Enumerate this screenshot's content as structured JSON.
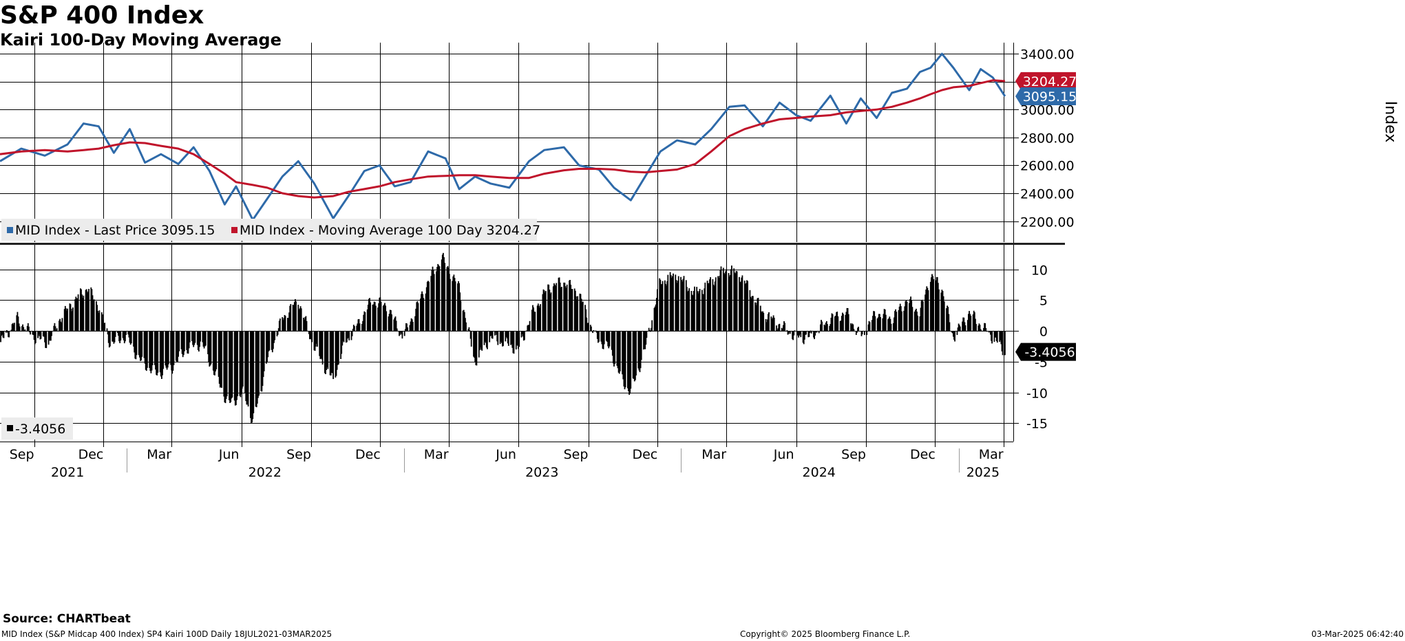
{
  "title": "S&P 400 Index",
  "subtitle": "Kairi 100-Day Moving Average",
  "source": "Source: CHARTbeat",
  "footer": {
    "left": "MID Index (S&P Midcap 400 Index) SP4 Kairi 100D  Daily 18JUL2021-03MAR2025",
    "center": "Copyright© 2025 Bloomberg Finance L.P.",
    "right": "03-Mar-2025 06:42:40"
  },
  "colors": {
    "price": "#2e6aa9",
    "moving_average": "#c0142b",
    "kairi": "#000000",
    "grid": "#000000"
  },
  "chart_data": [
    {
      "type": "line",
      "panel": "upper",
      "ylabel": "Index",
      "ylim": [
        2050,
        3480
      ],
      "yticks": [
        2200,
        2400,
        2600,
        2800,
        3000,
        3200,
        3400
      ],
      "ytick_labels": [
        "2200.00",
        "2400.00",
        "2600.00",
        "2800.00",
        "3000.00",
        "3200.00",
        "3400.00"
      ],
      "grid": true,
      "legend_position": "bottom-left",
      "x": [
        "2021-07-18",
        "2021-08-15",
        "2021-09-15",
        "2021-10-15",
        "2021-11-05",
        "2021-11-25",
        "2021-12-15",
        "2022-01-05",
        "2022-01-25",
        "2022-02-15",
        "2022-03-10",
        "2022-03-30",
        "2022-04-20",
        "2022-05-10",
        "2022-05-25",
        "2022-06-16",
        "2022-07-05",
        "2022-07-25",
        "2022-08-15",
        "2022-09-05",
        "2022-09-30",
        "2022-10-20",
        "2022-11-10",
        "2022-11-30",
        "2022-12-20",
        "2023-01-10",
        "2023-02-02",
        "2023-02-25",
        "2023-03-15",
        "2023-04-05",
        "2023-04-25",
        "2023-05-20",
        "2023-06-15",
        "2023-07-05",
        "2023-07-31",
        "2023-08-20",
        "2023-09-15",
        "2023-10-05",
        "2023-10-27",
        "2023-11-15",
        "2023-12-05",
        "2023-12-27",
        "2024-01-20",
        "2024-02-10",
        "2024-03-05",
        "2024-03-25",
        "2024-04-18",
        "2024-05-10",
        "2024-06-01",
        "2024-06-20",
        "2024-07-16",
        "2024-08-06",
        "2024-08-25",
        "2024-09-15",
        "2024-10-05",
        "2024-10-25",
        "2024-11-11",
        "2024-11-25",
        "2024-12-10",
        "2024-12-25",
        "2025-01-15",
        "2025-01-30",
        "2025-02-15",
        "2025-03-03"
      ],
      "series": [
        {
          "name": "MID Index - Last Price",
          "legend": "MID Index - Last Price 3095.15",
          "last_value": 3095.15,
          "last_label": "3095.15",
          "values": [
            2630,
            2720,
            2670,
            2750,
            2900,
            2880,
            2690,
            2860,
            2620,
            2680,
            2610,
            2730,
            2560,
            2320,
            2450,
            2210,
            2360,
            2520,
            2630,
            2470,
            2220,
            2380,
            2560,
            2600,
            2450,
            2480,
            2700,
            2650,
            2430,
            2520,
            2470,
            2440,
            2630,
            2710,
            2730,
            2600,
            2570,
            2440,
            2350,
            2520,
            2700,
            2780,
            2750,
            2860,
            3020,
            3030,
            2880,
            3050,
            2960,
            2920,
            3100,
            2900,
            3080,
            2940,
            3120,
            3150,
            3270,
            3300,
            3400,
            3300,
            3140,
            3290,
            3230,
            3095.15
          ]
        },
        {
          "name": "MID Index - Moving Average 100 Day",
          "legend": "MID Index - Moving Average 100 Day 3204.27",
          "last_value": 3204.27,
          "last_label": "3204.27",
          "values": [
            2680,
            2700,
            2710,
            2700,
            2710,
            2720,
            2745,
            2765,
            2760,
            2740,
            2720,
            2680,
            2610,
            2540,
            2480,
            2460,
            2440,
            2400,
            2380,
            2370,
            2380,
            2410,
            2430,
            2450,
            2480,
            2500,
            2520,
            2525,
            2530,
            2530,
            2520,
            2510,
            2510,
            2540,
            2565,
            2575,
            2575,
            2570,
            2555,
            2550,
            2560,
            2570,
            2610,
            2700,
            2810,
            2860,
            2900,
            2930,
            2940,
            2950,
            2960,
            2980,
            2990,
            3000,
            3020,
            3050,
            3080,
            3110,
            3140,
            3160,
            3170,
            3190,
            3210,
            3204.27
          ]
        }
      ]
    },
    {
      "type": "bar",
      "panel": "lower",
      "ylim": [
        -18,
        14
      ],
      "yticks": [
        -15,
        -10,
        -5,
        0,
        5,
        10
      ],
      "ytick_labels": [
        "-15",
        "-10",
        "-5",
        "0",
        "5",
        "10"
      ],
      "grid": true,
      "legend_position": "bottom-left",
      "series": [
        {
          "name": "",
          "legend": "-3.4056",
          "last_value": -3.4056,
          "last_label": "-3.4056",
          "x": [
            "2021-07-18",
            "2021-08-10",
            "2021-09-01",
            "2021-09-20",
            "2021-10-05",
            "2021-10-25",
            "2021-11-10",
            "2021-11-25",
            "2021-12-10",
            "2021-12-31",
            "2022-01-20",
            "2022-02-10",
            "2022-03-01",
            "2022-03-20",
            "2022-04-10",
            "2022-05-01",
            "2022-05-15",
            "2022-06-05",
            "2022-06-16",
            "2022-07-05",
            "2022-07-25",
            "2022-08-15",
            "2022-08-31",
            "2022-09-15",
            "2022-09-30",
            "2022-10-15",
            "2022-11-01",
            "2022-11-20",
            "2022-12-10",
            "2022-12-31",
            "2023-01-15",
            "2023-02-02",
            "2023-02-20",
            "2023-03-15",
            "2023-04-05",
            "2023-04-25",
            "2023-05-15",
            "2023-06-01",
            "2023-06-20",
            "2023-07-10",
            "2023-07-31",
            "2023-08-20",
            "2023-09-10",
            "2023-09-30",
            "2023-10-15",
            "2023-10-27",
            "2023-11-15",
            "2023-12-05",
            "2023-12-27",
            "2024-01-20",
            "2024-02-10",
            "2024-03-01",
            "2024-03-20",
            "2024-04-18",
            "2024-05-10",
            "2024-06-01",
            "2024-06-20",
            "2024-07-16",
            "2024-08-06",
            "2024-08-25",
            "2024-09-15",
            "2024-10-05",
            "2024-10-25",
            "2024-11-11",
            "2024-11-25",
            "2024-12-10",
            "2024-12-25",
            "2025-01-15",
            "2025-01-30",
            "2025-02-15",
            "2025-03-03"
          ],
          "values": [
            -2,
            2,
            -1,
            -2,
            2,
            5,
            7,
            4,
            -2,
            -1,
            -5,
            -7,
            -6,
            -3,
            -2,
            -8,
            -12,
            -10,
            -15,
            -5,
            2,
            5,
            -1,
            -5,
            -8,
            -2,
            1,
            5,
            4,
            -1,
            3,
            8,
            12,
            7,
            -5,
            -1,
            -2,
            -3,
            3,
            7,
            8,
            6,
            -1,
            -3,
            -8,
            -10,
            -3,
            8,
            9,
            6,
            8,
            10,
            9,
            3,
            1,
            -1,
            -1,
            2,
            3,
            -1,
            3,
            2,
            5,
            3,
            9,
            7,
            -1,
            3,
            1,
            -1,
            -3.4056
          ]
        }
      ]
    }
  ],
  "x_axis": {
    "month_labels": [
      "Sep",
      "Dec",
      "Mar",
      "Jun",
      "Sep",
      "Dec",
      "Mar",
      "Jun",
      "Sep",
      "Dec",
      "Mar",
      "Jun",
      "Sep",
      "Dec",
      "Mar"
    ],
    "year_labels": [
      "2021",
      "2022",
      "2023",
      "2024",
      "2025"
    ]
  }
}
